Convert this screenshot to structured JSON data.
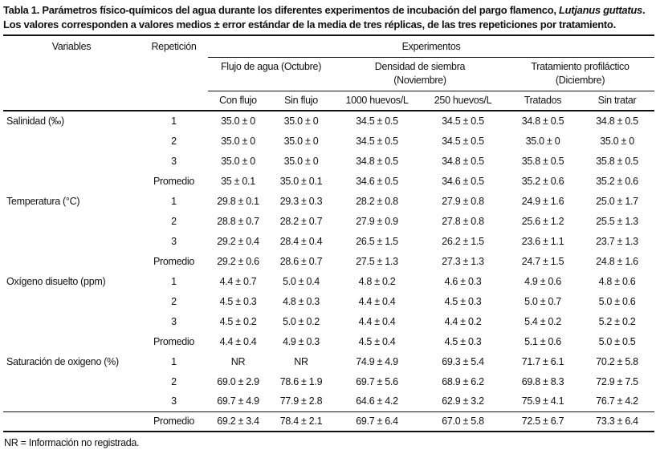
{
  "title": {
    "line1_prefix": "Tabla 1. Parámetros físico-químicos del agua durante los diferentes experimentos de incubación del pargo flamenco, ",
    "species": "Lutjanus guttatus",
    "line1_suffix": ".",
    "line2": "Los valores corresponden a valores medios ± error estándar de la media de tres réplicas, de las tres repeticiones por tratamiento."
  },
  "header": {
    "variables": "Variables",
    "repeticion": "Repetición",
    "experimentos": "Experimentos",
    "groups": [
      {
        "line1": "Flujo de agua (Octubre)",
        "line2": ""
      },
      {
        "line1": "Densidad de siembra",
        "line2": "(Noviembre)"
      },
      {
        "line1": "Tratamiento profiláctico",
        "line2": "(Diciembre)"
      }
    ],
    "columns": [
      "Con flujo",
      "Sin flujo",
      "1000 huevos/L",
      "250 huevos/L",
      "Tratados",
      "Sin tratar"
    ]
  },
  "sections": [
    {
      "variable": "Salinidad (‰)",
      "rows": [
        {
          "rep": "1",
          "values": [
            "35.0 ± 0",
            "35.0 ± 0",
            "34.5 ± 0.5",
            "34.5 ± 0.5",
            "34.8 ± 0.5",
            "34.8 ± 0.5"
          ]
        },
        {
          "rep": "2",
          "values": [
            "35.0 ± 0",
            "35.0 ± 0",
            "34.5 ± 0.5",
            "34.5 ± 0.5",
            "35.0 ± 0",
            "35.0 ± 0"
          ]
        },
        {
          "rep": "3",
          "values": [
            "35.0 ± 0",
            "35.0 ± 0",
            "34.8 ± 0.5",
            "34.8 ± 0.5",
            "35.8 ± 0.5",
            "35.8 ± 0.5"
          ]
        },
        {
          "rep": "Promedio",
          "values": [
            "35 ± 0.1",
            "35.0 ± 0.1",
            "34.6 ± 0.5",
            "34.6 ± 0.5",
            "35.2 ± 0.6",
            "35.2 ± 0.6"
          ]
        }
      ]
    },
    {
      "variable": "Temperatura (°C)",
      "rows": [
        {
          "rep": "1",
          "values": [
            "29.8 ± 0.1",
            "29.3 ± 0.3",
            "28.2 ± 0.8",
            "27.9 ± 0.8",
            "24.9 ± 1.6",
            "25.0 ± 1.7"
          ]
        },
        {
          "rep": "2",
          "values": [
            "28.8 ± 0.7",
            "28.2 ± 0.7",
            "27.9 ± 0.9",
            "27.8 ± 0.8",
            "25.6 ± 1.2",
            "25.5 ± 1.3"
          ]
        },
        {
          "rep": "3",
          "values": [
            "29.2 ± 0.4",
            "28.4 ± 0.4",
            "26.5 ± 1.5",
            "26.2 ± 1.5",
            "23.6 ± 1.1",
            "23.7 ± 1.3"
          ]
        },
        {
          "rep": "Promedio",
          "values": [
            "29.2 ± 0.6",
            "28.6 ± 0.7",
            "27.5 ± 1.3",
            "27.3 ± 1.3",
            "24.7 ± 1.5",
            "24.8 ± 1.6"
          ]
        }
      ]
    },
    {
      "variable": "Oxígeno disuelto (ppm)",
      "rows": [
        {
          "rep": "1",
          "values": [
            "4.4 ± 0.7",
            "5.0 ± 0.4",
            "4.8 ± 0.2",
            "4.6 ± 0.3",
            "4.9 ± 0.6",
            "4.8 ± 0.6"
          ]
        },
        {
          "rep": "2",
          "values": [
            "4.5 ± 0.3",
            "4.8 ± 0.3",
            "4.4 ± 0.4",
            "4.5 ± 0.3",
            "5.0 ± 0.7",
            "5.0 ± 0.6"
          ]
        },
        {
          "rep": "3",
          "values": [
            "4.5 ± 0.2",
            "5.0 ± 0.2",
            "4.4 ± 0.4",
            "4.4 ± 0.2",
            "5.4 ± 0.2",
            "5.2 ± 0.2"
          ]
        },
        {
          "rep": "Promedio",
          "values": [
            "4.4 ± 0.4",
            "4.9 ± 0.3",
            "4.5 ± 0.4",
            "4.5 ± 0.3",
            "5.1 ± 0.6",
            "5.0 ± 0.5"
          ]
        }
      ]
    },
    {
      "variable": "Saturación de oxigeno (%)",
      "rows": [
        {
          "rep": "1",
          "values": [
            "NR",
            "NR",
            "74.9 ± 4.9",
            "69.3 ± 5.4",
            "71.7 ± 6.1",
            "70.2 ± 5.8"
          ]
        },
        {
          "rep": "2",
          "values": [
            "69.0 ± 2.9",
            "78.6 ± 1.9",
            "69.7 ± 5.6",
            "68.9 ± 6.2",
            "69.8 ± 8.3",
            "72.9 ± 7.5"
          ]
        },
        {
          "rep": "3",
          "values": [
            "69.7 ± 4.9",
            "77.9 ± 2.8",
            "64.6 ± 4.2",
            "62.9 ± 3.2",
            "75.9 ± 4.1",
            "76.7 ± 4.2"
          ]
        },
        {
          "rep": "Promedio",
          "values": [
            "69.2 ± 3.4",
            "78.4 ± 2.1",
            "69.7 ± 6.4",
            "67.0 ± 5.8",
            "72.5 ± 6.7",
            "73.3 ± 6.4"
          ]
        }
      ]
    }
  ],
  "footnote": "NR = Información no registrada."
}
